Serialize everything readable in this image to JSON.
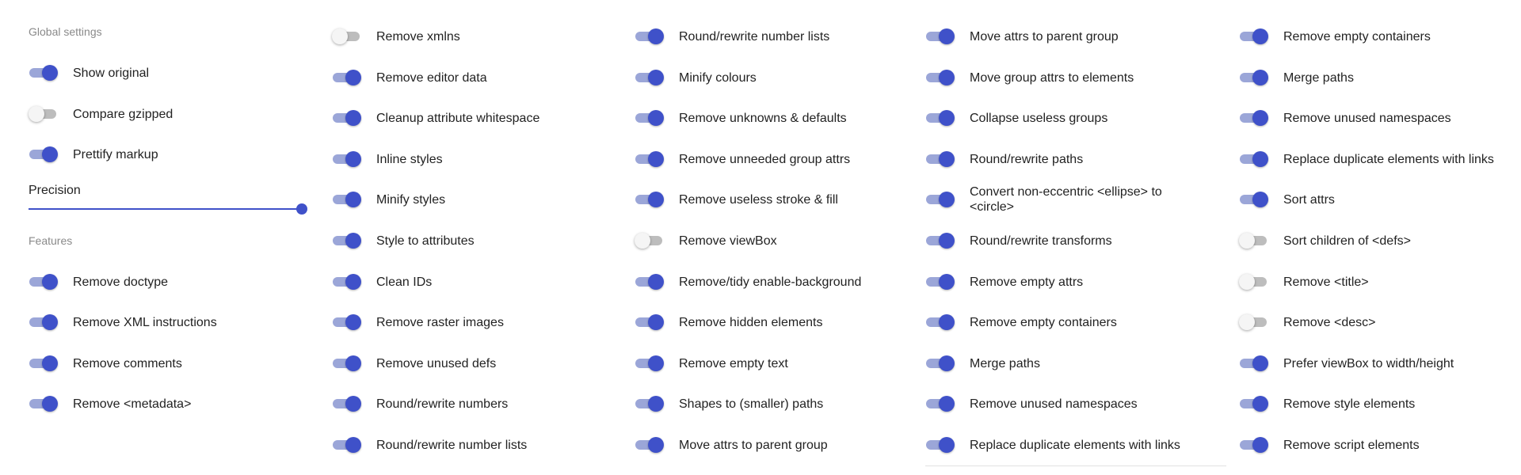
{
  "colors": {
    "accent": "#3f51c9",
    "track_on": "#9ba6d8",
    "track_off": "#bdbdbd",
    "muted_text": "#8a8a8a"
  },
  "global_settings": {
    "heading": "Global settings",
    "items": [
      {
        "label": "Show original",
        "enabled": true
      },
      {
        "label": "Compare gzipped",
        "enabled": false
      },
      {
        "label": "Prettify markup",
        "enabled": true
      }
    ],
    "precision": {
      "label": "Precision",
      "level_percent": 100
    }
  },
  "features": {
    "heading": "Features",
    "first_column": [
      {
        "label": "Remove doctype",
        "enabled": true
      },
      {
        "label": "Remove XML instructions",
        "enabled": true
      },
      {
        "label": "Remove comments",
        "enabled": true
      },
      {
        "label": "Remove <metadata>",
        "enabled": true
      }
    ],
    "columns": [
      [
        {
          "label": "Remove xmlns",
          "enabled": false
        },
        {
          "label": "Remove editor data",
          "enabled": true
        },
        {
          "label": "Cleanup attribute whitespace",
          "enabled": true
        },
        {
          "label": "Inline styles",
          "enabled": true
        },
        {
          "label": "Minify styles",
          "enabled": true
        },
        {
          "label": "Style to attributes",
          "enabled": true
        },
        {
          "label": "Clean IDs",
          "enabled": true
        },
        {
          "label": "Remove raster images",
          "enabled": true
        },
        {
          "label": "Remove unused defs",
          "enabled": true
        },
        {
          "label": "Round/rewrite numbers",
          "enabled": true
        },
        {
          "label": "Round/rewrite number lists",
          "enabled": true
        }
      ],
      [
        {
          "label": "Round/rewrite number lists",
          "enabled": true
        },
        {
          "label": "Minify colours",
          "enabled": true
        },
        {
          "label": "Remove unknowns & defaults",
          "enabled": true
        },
        {
          "label": "Remove unneeded group attrs",
          "enabled": true
        },
        {
          "label": "Remove useless stroke & fill",
          "enabled": true
        },
        {
          "label": "Remove viewBox",
          "enabled": false
        },
        {
          "label": "Remove/tidy enable-background",
          "enabled": true
        },
        {
          "label": "Remove hidden elements",
          "enabled": true
        },
        {
          "label": "Remove empty text",
          "enabled": true
        },
        {
          "label": "Shapes to (smaller) paths",
          "enabled": true
        },
        {
          "label": "Move attrs to parent group",
          "enabled": true
        }
      ],
      [
        {
          "label": "Move attrs to parent group",
          "enabled": true
        },
        {
          "label": "Move group attrs to elements",
          "enabled": true
        },
        {
          "label": "Collapse useless groups",
          "enabled": true
        },
        {
          "label": "Round/rewrite paths",
          "enabled": true
        },
        {
          "label": "Convert non-eccentric <ellipse> to <circle>",
          "enabled": true
        },
        {
          "label": "Round/rewrite transforms",
          "enabled": true
        },
        {
          "label": "Remove empty attrs",
          "enabled": true
        },
        {
          "label": "Remove empty containers",
          "enabled": true
        },
        {
          "label": "Merge paths",
          "enabled": true
        },
        {
          "label": "Remove unused namespaces",
          "enabled": true
        },
        {
          "label": "Replace duplicate elements with links",
          "enabled": true
        }
      ],
      [
        {
          "label": "Remove empty containers",
          "enabled": true
        },
        {
          "label": "Merge paths",
          "enabled": true
        },
        {
          "label": "Remove unused namespaces",
          "enabled": true
        },
        {
          "label": "Replace duplicate elements with links",
          "enabled": true
        },
        {
          "label": "Sort attrs",
          "enabled": true
        },
        {
          "label": "Sort children of <defs>",
          "enabled": false
        },
        {
          "label": "Remove <title>",
          "enabled": false
        },
        {
          "label": "Remove <desc>",
          "enabled": false
        },
        {
          "label": "Prefer viewBox to width/height",
          "enabled": true
        },
        {
          "label": "Remove style elements",
          "enabled": true
        },
        {
          "label": "Remove script elements",
          "enabled": true
        }
      ]
    ]
  }
}
